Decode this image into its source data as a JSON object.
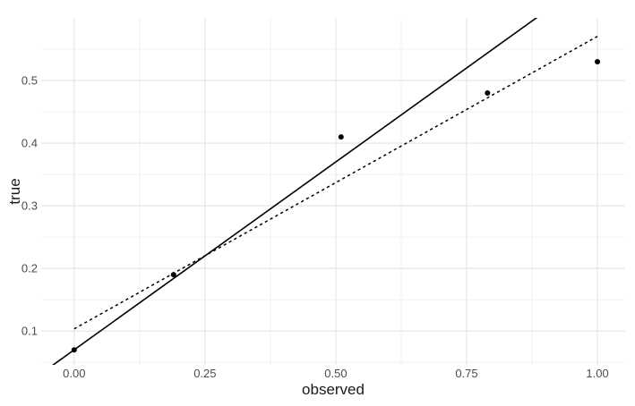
{
  "chart_data": {
    "type": "scatter",
    "title": "",
    "xlabel": "observed",
    "ylabel": "true",
    "xlim": [
      -0.063,
      1.053
    ],
    "ylim": [
      0.046,
      0.6
    ],
    "grid": "major+minor",
    "legend": "none",
    "x_ticks": {
      "values": [
        0,
        0.25,
        0.5,
        0.75,
        1.0
      ],
      "labels": [
        "0.00",
        "0.25",
        "0.50",
        "0.75",
        "1.00"
      ]
    },
    "y_ticks": {
      "values": [
        0.1,
        0.2,
        0.3,
        0.4,
        0.5
      ],
      "labels": [
        "0.1",
        "0.2",
        "0.3",
        "0.4",
        "0.5"
      ]
    },
    "x_minor": [
      0.125,
      0.375,
      0.625,
      0.875
    ],
    "y_minor": [
      0.05,
      0.15,
      0.25,
      0.35,
      0.45,
      0.55
    ],
    "points": [
      {
        "x": 0.0,
        "y": 0.07
      },
      {
        "x": 0.19,
        "y": 0.19
      },
      {
        "x": 0.51,
        "y": 0.41
      },
      {
        "x": 0.79,
        "y": 0.48
      },
      {
        "x": 1.0,
        "y": 0.53
      }
    ],
    "lines": [
      {
        "name": "solid-reference-line",
        "style": "solid",
        "slope": 0.6,
        "intercept": 0.07,
        "x_start": -0.063,
        "x_end": 1.053
      },
      {
        "name": "dashed-fit-line",
        "style": "dashed",
        "slope": 0.467,
        "intercept": 0.1035,
        "x_start": 0.0,
        "x_end": 1.0
      }
    ],
    "colors": {
      "background": "#ffffff",
      "point": "#000000",
      "line": "#000000",
      "grid_major": "#e3e3e3",
      "grid_minor": "#f1f1f1",
      "tick_text": "#4d4d4d",
      "title_text": "#1a1a1a"
    }
  }
}
